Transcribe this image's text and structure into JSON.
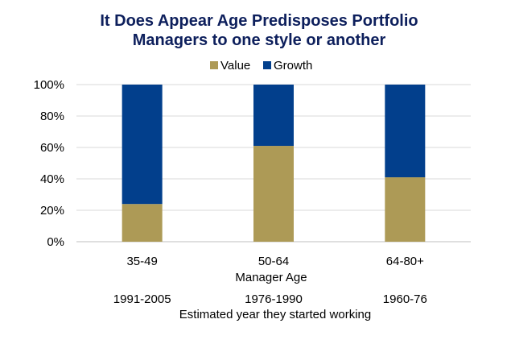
{
  "chart_data": {
    "type": "bar",
    "stacked": true,
    "title_lines": [
      "It Does Appear Age Predisposes Portfolio",
      "Managers to one style or another"
    ],
    "categories": [
      "35-49",
      "50-64",
      "64-80+"
    ],
    "secondary_categories": [
      "1991-2005",
      "1976-1990",
      "1960-76"
    ],
    "series": [
      {
        "name": "Value",
        "values": [
          24,
          61,
          41
        ],
        "color": "#ad9a56"
      },
      {
        "name": "Growth",
        "values": [
          76,
          39,
          59
        ],
        "color": "#023f8c"
      }
    ],
    "ylim": [
      0,
      100
    ],
    "yticks": [
      "0%",
      "20%",
      "40%",
      "60%",
      "80%",
      "100%"
    ],
    "xlabel": "Manager Age",
    "xlabel2": "Estimated year they started working",
    "legend_position": "top",
    "grid": true
  }
}
